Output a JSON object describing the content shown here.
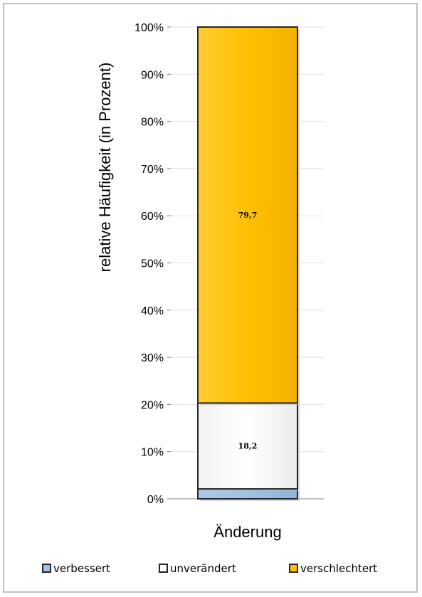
{
  "chart_data": {
    "type": "bar",
    "stacked": true,
    "categories": [
      ""
    ],
    "xlabel": "Änderung",
    "ylabel": "relative Häufigkeit (in Prozent)",
    "ylim": [
      0,
      100
    ],
    "yticks": [
      "0%",
      "10%",
      "20%",
      "30%",
      "40%",
      "50%",
      "60%",
      "70%",
      "80%",
      "90%",
      "100%"
    ],
    "grid": true,
    "legend_position": "bottom",
    "series": [
      {
        "name": "verbessert",
        "values": [
          2.1
        ],
        "label": "",
        "color": "#9dc3e6"
      },
      {
        "name": "unverändert",
        "values": [
          18.2
        ],
        "label": "18,2",
        "color": "#ffffff"
      },
      {
        "name": "verschlechtert",
        "values": [
          79.7
        ],
        "label": "79,7",
        "color": "#ffc000"
      }
    ]
  }
}
